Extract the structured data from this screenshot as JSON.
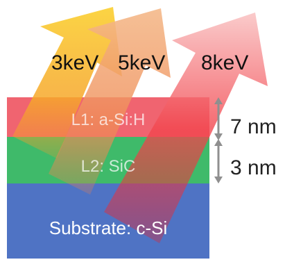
{
  "layers": [
    {
      "label": "L1: a-Si:H",
      "color": "#f06470"
    },
    {
      "label": "L2: SiC",
      "color": "#3fba6a"
    },
    {
      "label": "Substrate: c-Si",
      "color": "#4f73c4"
    }
  ],
  "beams": [
    {
      "energy": "3keV",
      "color": "#f7b428"
    },
    {
      "energy": "5keV",
      "color": "#f39a5e"
    },
    {
      "energy": "8keV",
      "color": "#f2323a"
    }
  ],
  "thickness": [
    {
      "label": "7 nm"
    },
    {
      "label": "3 nm"
    }
  ],
  "colors": {
    "dimension_arrow": "#8f8f8f"
  }
}
